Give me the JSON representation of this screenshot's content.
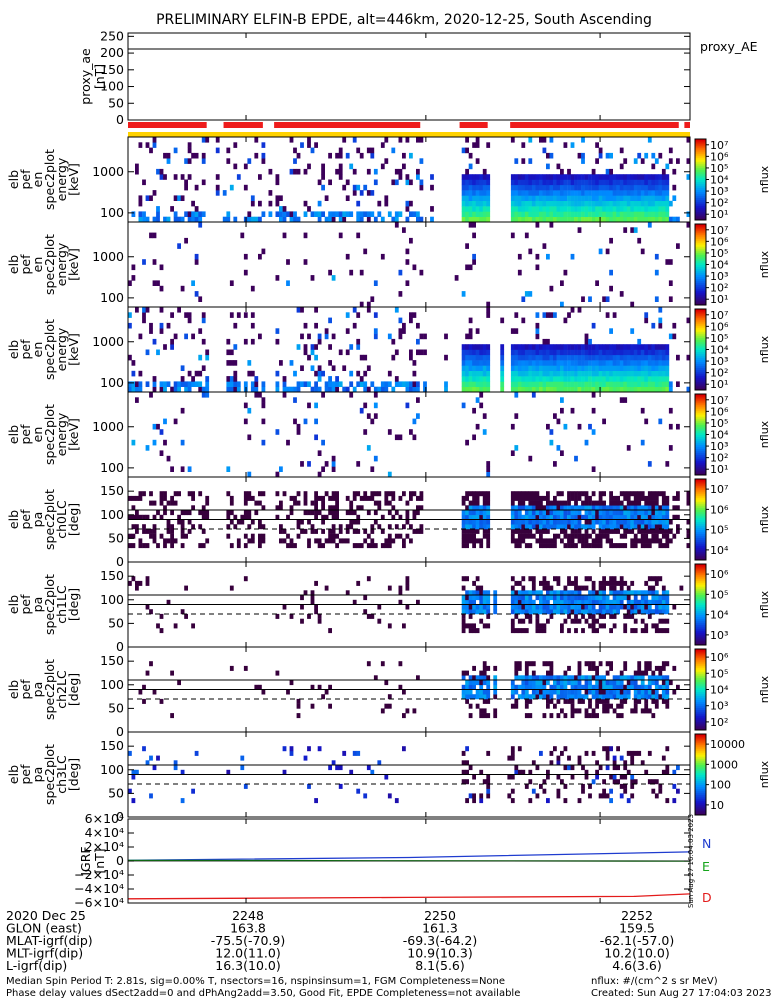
{
  "title": "PRELIMINARY ELFIN-B EPDE, alt=446km, 2020-12-25, South Ascending",
  "colors": {
    "segment_red": "#ee1c1c",
    "segment_yellow": "#ffd200",
    "geo_N": "#1f3ccf",
    "geo_E": "#16a51c",
    "geo_D": "#e31b1b"
  },
  "chart_data": [
    {
      "id": "proxy_ae",
      "type": "line",
      "ylabel": "proxy_ae\n[nT]",
      "legend": "proxy_AE",
      "yticks": [
        "0",
        "50",
        "100",
        "150",
        "200",
        "250"
      ],
      "ylim": [
        0,
        260
      ],
      "hline": 212
    },
    {
      "id": "spec_en_1",
      "type": "heatmap",
      "ylabel": "elb\npef\nen\nspec2plot\nenergy\n[keV]",
      "yscale": "log",
      "yticks": [
        "100",
        "1000"
      ],
      "ylim": [
        60,
        7000
      ],
      "colorbar": {
        "label": "nflux",
        "scale": "log",
        "ticks": [
          "10¹",
          "10²",
          "10³",
          "10⁴",
          "10⁵",
          "10⁶",
          "10⁷"
        ]
      }
    },
    {
      "id": "spec_en_2",
      "type": "heatmap",
      "ylabel": "elb\npef\nen\nspec2plot\nenergy\n[keV]",
      "yscale": "log",
      "yticks": [
        "100",
        "1000"
      ],
      "ylim": [
        60,
        7000
      ],
      "colorbar": {
        "label": "nflux",
        "scale": "log",
        "ticks": [
          "10¹",
          "10²",
          "10³",
          "10⁴",
          "10⁵",
          "10⁶",
          "10⁷"
        ]
      }
    },
    {
      "id": "spec_en_3",
      "type": "heatmap",
      "ylabel": "elb\npef\nen\nspec2plot\nenergy\n[keV]",
      "yscale": "log",
      "yticks": [
        "100",
        "1000"
      ],
      "ylim": [
        60,
        7000
      ],
      "colorbar": {
        "label": "nflux",
        "scale": "log",
        "ticks": [
          "10¹",
          "10²",
          "10³",
          "10⁴",
          "10⁵",
          "10⁶",
          "10⁷"
        ]
      }
    },
    {
      "id": "spec_en_4",
      "type": "heatmap",
      "ylabel": "elb\npef\nen\nspec2plot\nenergy\n[keV]",
      "yscale": "log",
      "yticks": [
        "100",
        "1000"
      ],
      "ylim": [
        60,
        7000
      ],
      "colorbar": {
        "label": "nflux",
        "scale": "log",
        "ticks": [
          "10¹",
          "10²",
          "10³",
          "10⁴",
          "10⁵",
          "10⁶",
          "10⁷"
        ]
      }
    },
    {
      "id": "pa_ch0",
      "type": "heatmap",
      "ylabel": "elb\npef\npa\nspec2plot\nch0LC\n[deg]",
      "yticks": [
        "0",
        "50",
        "100",
        "150"
      ],
      "ylim": [
        0,
        180
      ],
      "hlines": [
        90,
        110
      ],
      "dashed": 70,
      "colorbar": {
        "label": "nflux",
        "scale": "log",
        "ticks": [
          "10⁴",
          "10⁵",
          "10⁶",
          "10⁷"
        ]
      }
    },
    {
      "id": "pa_ch1",
      "type": "heatmap",
      "ylabel": "elb\npef\npa\nspec2plot\nch1LC\n[deg]",
      "yticks": [
        "0",
        "50",
        "100",
        "150"
      ],
      "ylim": [
        0,
        180
      ],
      "hlines": [
        90,
        110
      ],
      "dashed": 70,
      "colorbar": {
        "label": "nflux",
        "scale": "log",
        "ticks": [
          "10³",
          "10⁴",
          "10⁵",
          "10⁶"
        ]
      }
    },
    {
      "id": "pa_ch2",
      "type": "heatmap",
      "ylabel": "elb\npef\npa\nspec2plot\nch2LC\n[deg]",
      "yticks": [
        "0",
        "50",
        "100",
        "150"
      ],
      "ylim": [
        0,
        180
      ],
      "hlines": [
        90,
        110
      ],
      "dashed": 70,
      "colorbar": {
        "label": "nflux",
        "scale": "log",
        "ticks": [
          "10²",
          "10³",
          "10⁴",
          "10⁵",
          "10⁶"
        ]
      }
    },
    {
      "id": "pa_ch3",
      "type": "heatmap",
      "ylabel": "elb\npef\npa\nspec2plot\nch3LC\n[deg]",
      "yticks": [
        "0",
        "50",
        "100",
        "150"
      ],
      "ylim": [
        0,
        180
      ],
      "hlines": [
        90,
        110
      ],
      "dashed": 70,
      "colorbar": {
        "label": "nflux",
        "scale": "log",
        "ticks": [
          "10",
          "100",
          "1000",
          "10000"
        ]
      }
    },
    {
      "id": "igrf",
      "type": "line",
      "ylabel": "IGRF\n[nT]",
      "yticks": [
        "−6×10⁴",
        "−4×10⁴",
        "−2×10⁴",
        "0",
        "2×10⁴",
        "4×10⁴",
        "6×10⁴"
      ],
      "ylim": [
        -60000,
        60000
      ],
      "series": [
        {
          "name": "N",
          "x": [
            0,
            0.5,
            1
          ],
          "y": [
            1000,
            5000,
            13000
          ]
        },
        {
          "name": "E",
          "x": [
            0,
            0.5,
            1
          ],
          "y": [
            800,
            300,
            -200
          ]
        },
        {
          "name": "D",
          "x": [
            0,
            0.5,
            0.9,
            1
          ],
          "y": [
            -54000,
            -52000,
            -50500,
            -47000
          ]
        }
      ],
      "side_text": "Sun Aug 27 16:04:03 2023"
    }
  ],
  "segments": {
    "red": [
      [
        0.0,
        0.14
      ],
      [
        0.17,
        0.24
      ],
      [
        0.26,
        0.52
      ],
      [
        0.59,
        0.64
      ],
      [
        0.68,
        0.98
      ],
      [
        0.99,
        1.0
      ]
    ]
  },
  "footer": {
    "rows": [
      {
        "label": "2020 Dec 25",
        "values": [
          "2248",
          "2250",
          "2252"
        ]
      },
      {
        "label": "GLON (east)",
        "values": [
          "163.8",
          "161.3",
          "159.5"
        ]
      },
      {
        "label": "MLAT-igrf(dip)",
        "values": [
          "-75.5(-70.9)",
          "-69.3(-64.2)",
          "-62.1(-57.0)"
        ]
      },
      {
        "label": "MLT-igrf(dip)",
        "values": [
          "12.0(11.0)",
          "10.9(10.3)",
          "10.2(10.0)"
        ]
      },
      {
        "label": "L-igrf(dip)",
        "values": [
          "16.3(10.0)",
          "8.1(5.6)",
          "4.6(3.6)"
        ]
      }
    ],
    "note1": "Median Spin Period T: 2.81s, sig=0.00% T, nsectors=16, nspinsinsum=1, FGM Completeness=None",
    "note2": "Phase delay values dSect2add=0 and dPhAng2add=3.50, Good Fit, EPDE Completeness=not available",
    "units": "nflux: #/(cm^2 s sr MeV)",
    "created": "Created: Sun Aug 27 17:04:03 2023"
  }
}
